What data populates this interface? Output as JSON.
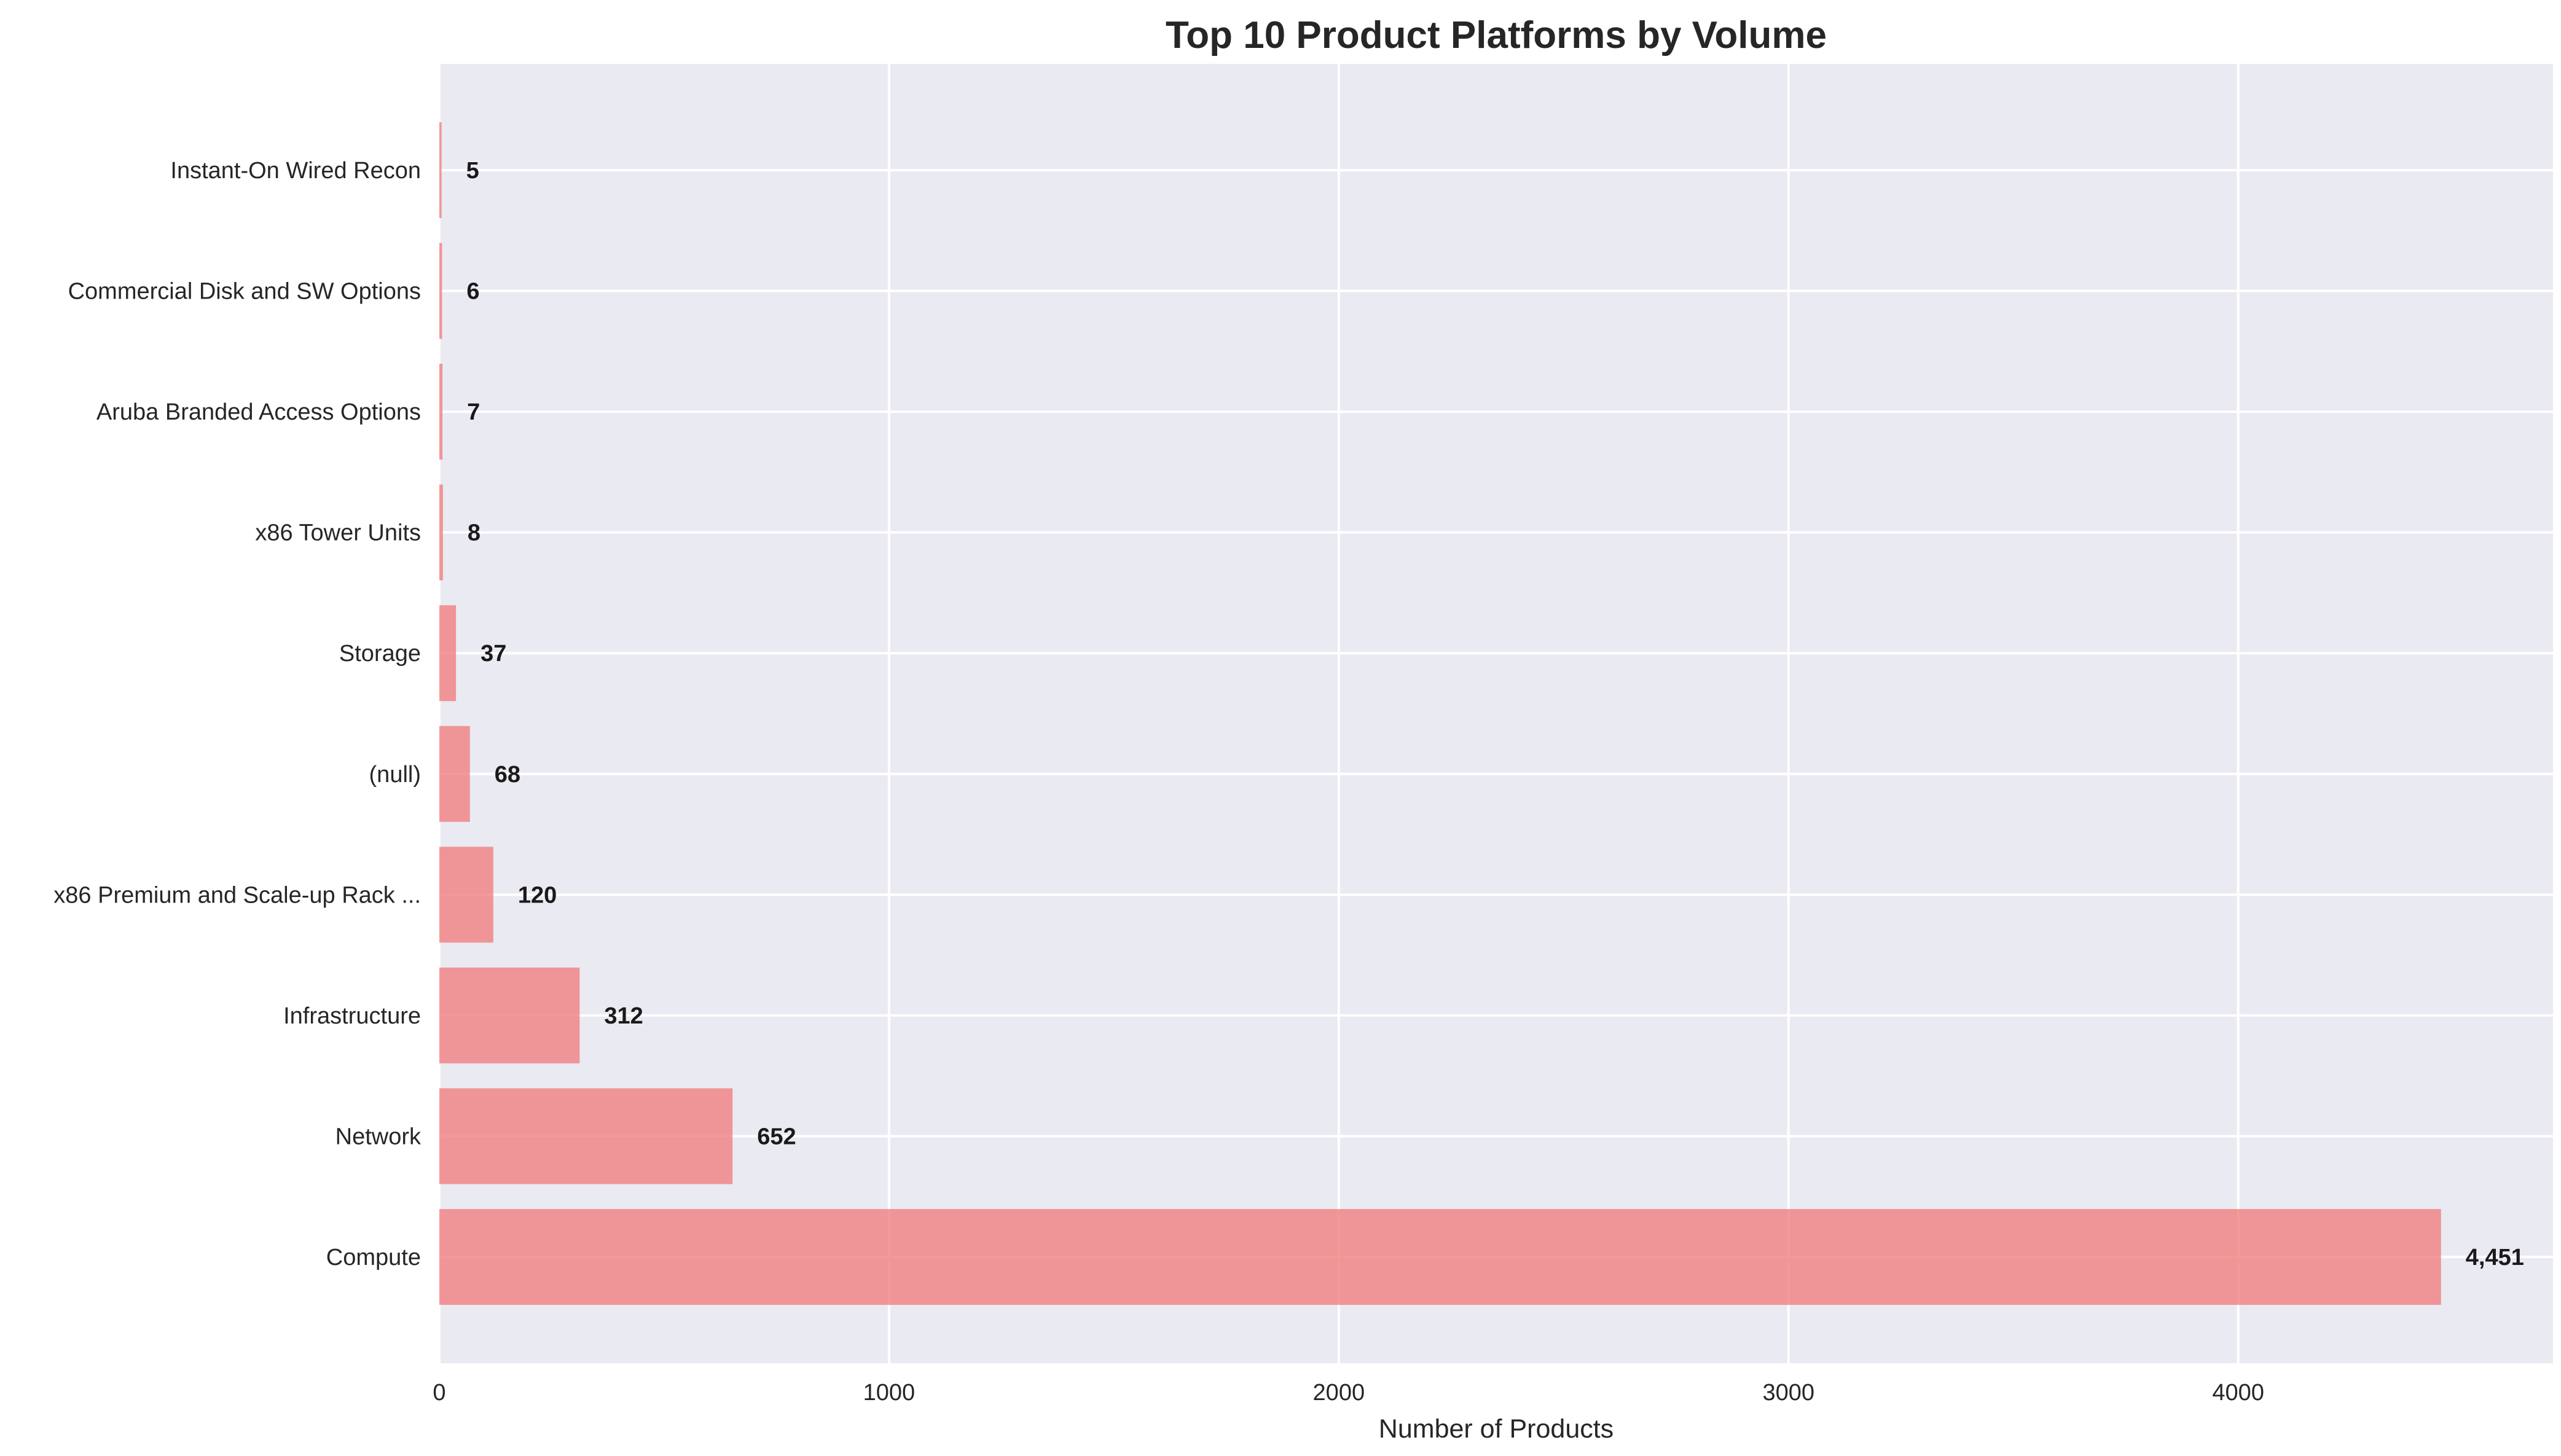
{
  "chart_data": {
    "type": "bar",
    "orientation": "horizontal",
    "title": "Top 10 Product Platforms by Volume",
    "xlabel": "Number of Products",
    "ylabel": "",
    "categories": [
      "Compute",
      "Network",
      "Infrastructure",
      "x86 Premium and Scale-up Rack ...",
      "(null)",
      "Storage",
      "x86 Tower Units",
      "Aruba Branded Access Options",
      "Commercial Disk and SW Options",
      "Instant-On Wired Recon"
    ],
    "values": [
      4451,
      652,
      312,
      120,
      68,
      37,
      8,
      7,
      6,
      5
    ],
    "value_labels": [
      "4,451",
      "652",
      "312",
      "120",
      "68",
      "37",
      "8",
      "7",
      "6",
      "5"
    ],
    "xticks": [
      0,
      1000,
      2000,
      3000,
      4000
    ],
    "xtick_labels": [
      "0",
      "1000",
      "2000",
      "3000",
      "4000"
    ],
    "xlim": [
      0,
      4700
    ],
    "grid": true,
    "colors": {
      "bar": "#f08080",
      "plot_background": "#eaeaf2",
      "grid": "#ffffff"
    }
  }
}
